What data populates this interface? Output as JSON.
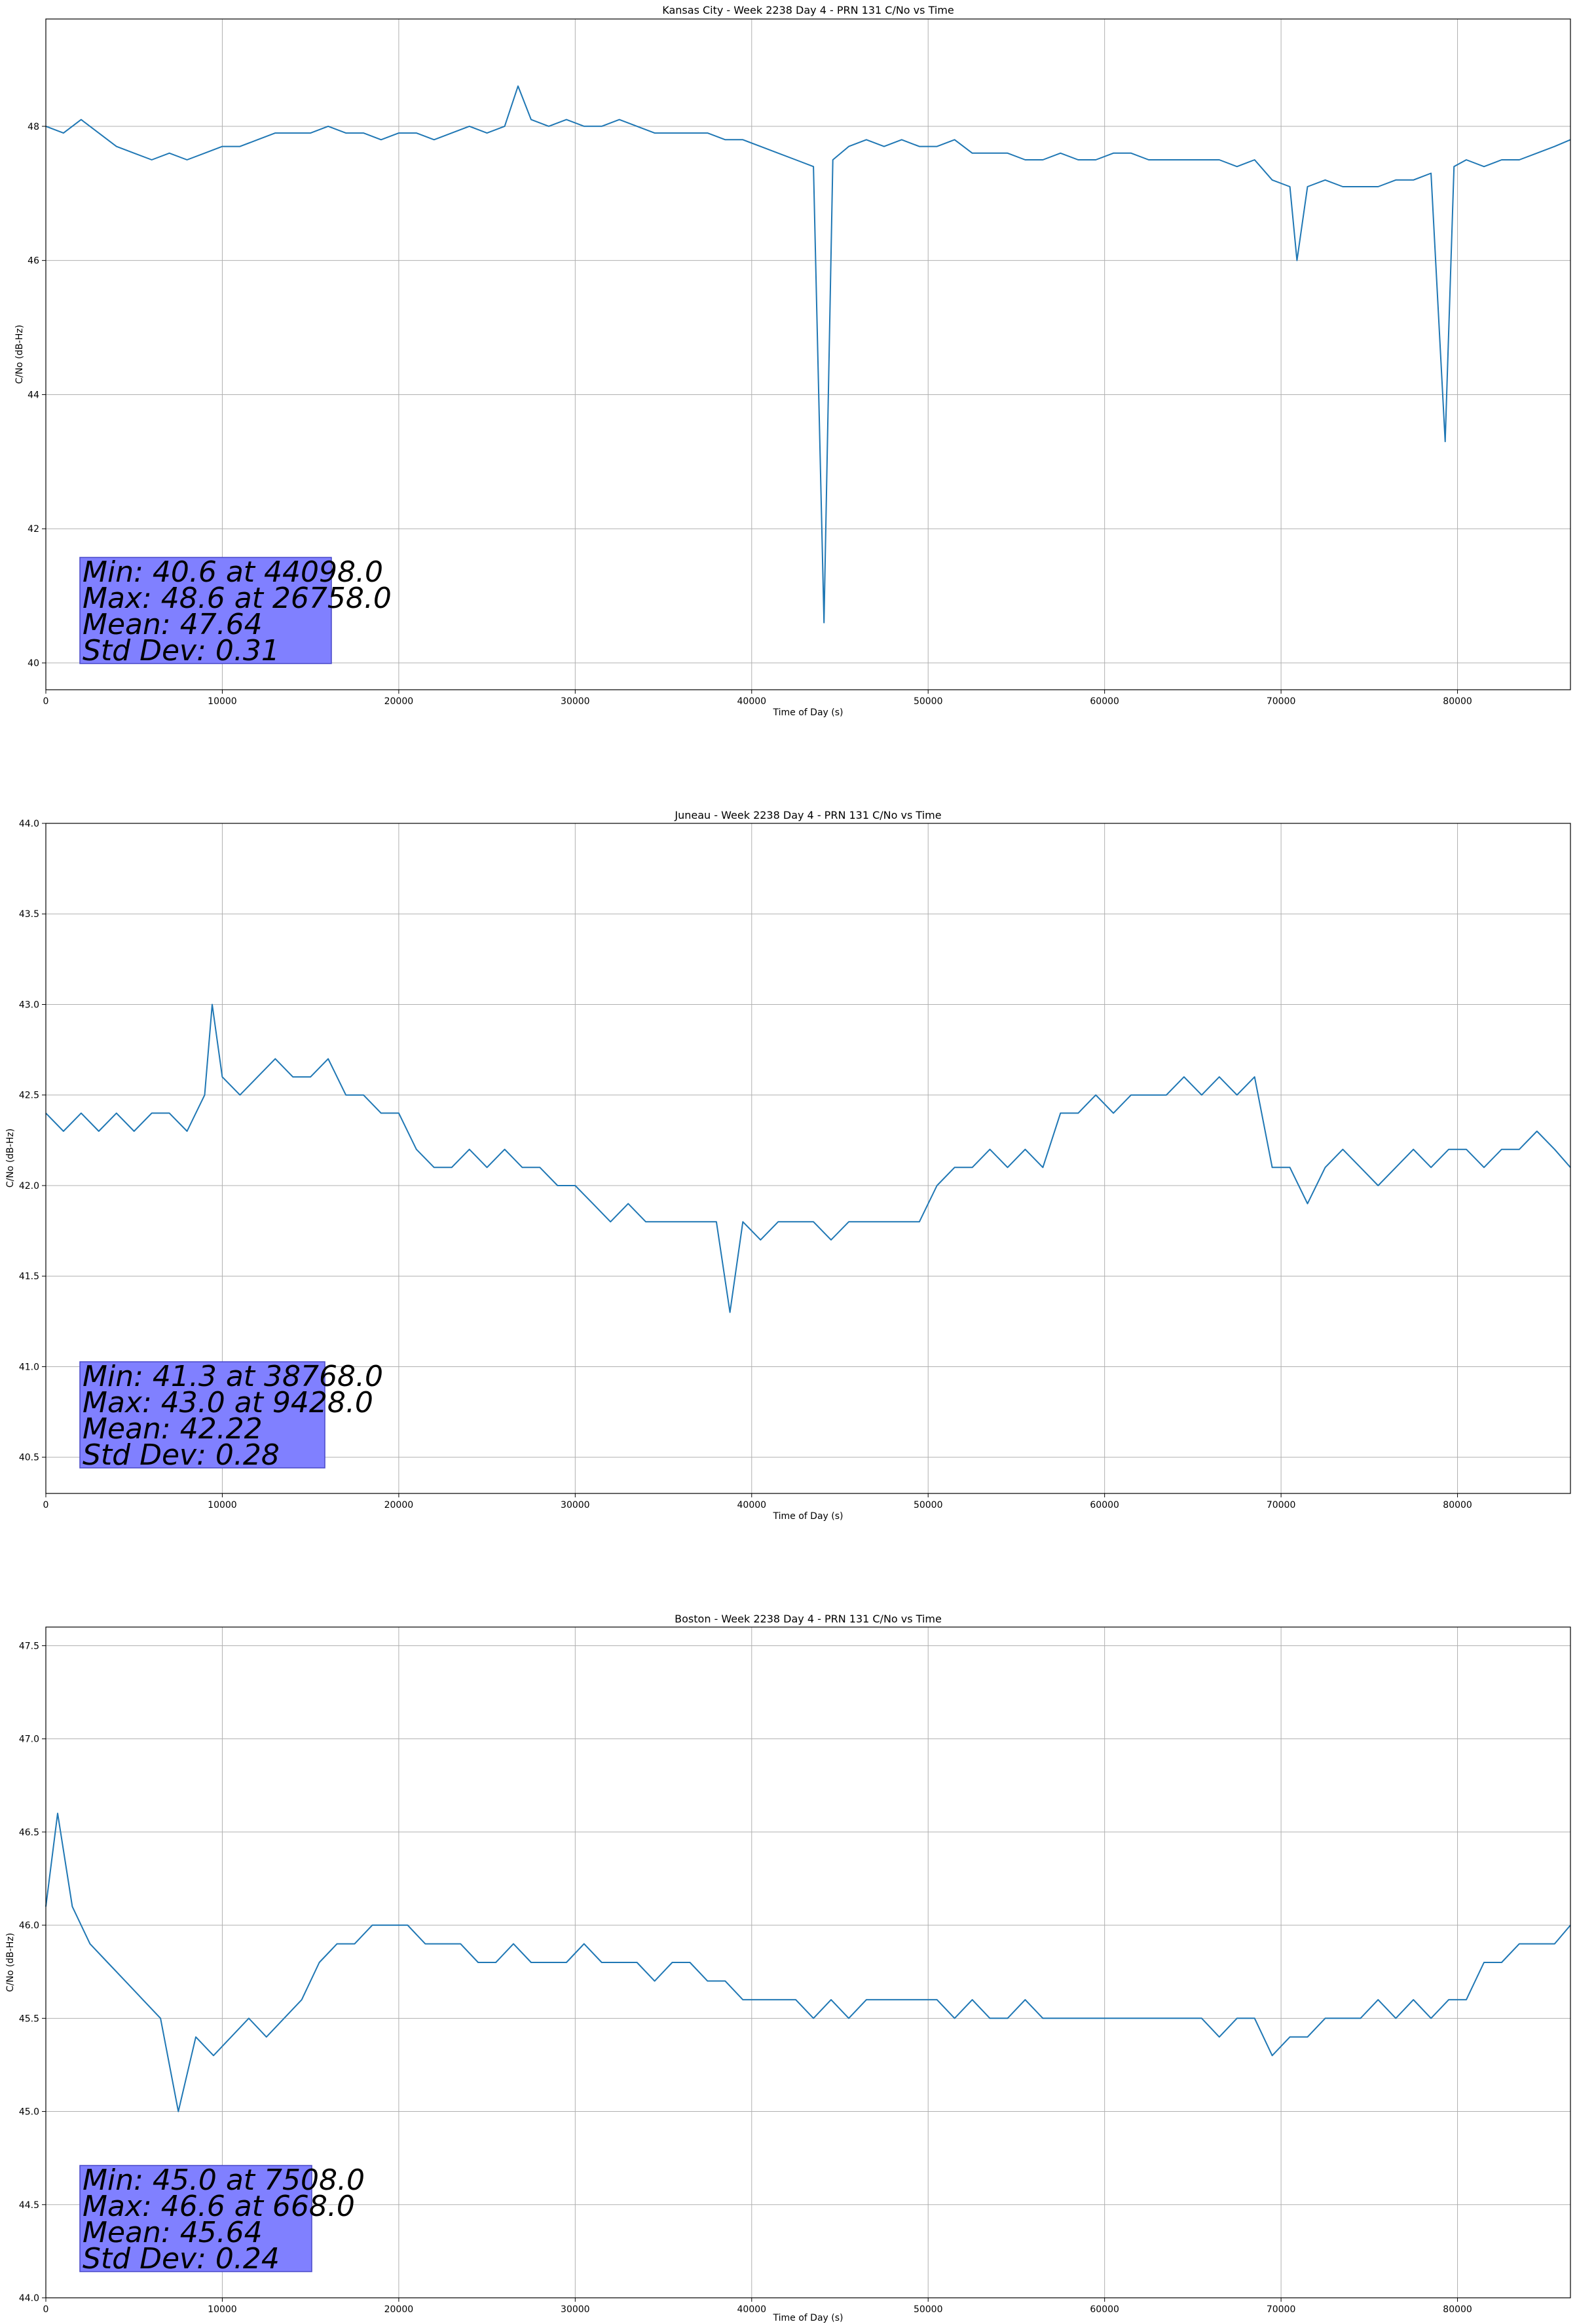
{
  "chart_data": [
    {
      "type": "line",
      "title": "Kansas City - Week 2238 Day 4 - PRN 131 C/No vs Time",
      "xlabel": "Time of Day (s)",
      "ylabel": "C/No (dB-Hz)",
      "xlim": [
        0,
        86400
      ],
      "ylim": [
        39.6,
        49.6
      ],
      "xticks": [
        0,
        10000,
        20000,
        30000,
        40000,
        50000,
        60000,
        70000,
        80000
      ],
      "yticks": [
        40,
        42,
        44,
        46,
        48
      ],
      "ytick_labels": [
        "40",
        "42",
        "44",
        "46",
        "48"
      ],
      "grid": true,
      "series_color": "#1f77b4",
      "series": [
        {
          "x": [
            0,
            1000,
            2000,
            3000,
            4000,
            5000,
            6000,
            7000,
            8000,
            9000,
            10000,
            11000,
            12000,
            13000,
            14000,
            15000,
            16000,
            17000,
            18000,
            19000,
            20000,
            21000,
            22000,
            23000,
            24000,
            25000,
            26000,
            26758,
            27500,
            28500,
            29500,
            30500,
            31500,
            32500,
            33500,
            34500,
            35500,
            36500,
            37500,
            38500,
            39500,
            40500,
            41500,
            42500,
            43500,
            44098,
            44600,
            45500,
            46500,
            47500,
            48500,
            49500,
            50500,
            51500,
            52500,
            53500,
            54500,
            55500,
            56500,
            57500,
            58500,
            59500,
            60500,
            61500,
            62500,
            63500,
            64500,
            65500,
            66500,
            67500,
            68500,
            69500,
            70500,
            70900,
            71500,
            72500,
            73500,
            74500,
            75500,
            76500,
            77500,
            78500,
            79300,
            79800,
            80500,
            81500,
            82500,
            83500,
            84500,
            85500,
            86400
          ],
          "y": [
            48.0,
            47.9,
            48.1,
            47.9,
            47.7,
            47.6,
            47.5,
            47.6,
            47.5,
            47.6,
            47.7,
            47.7,
            47.8,
            47.9,
            47.9,
            47.9,
            48.0,
            47.9,
            47.9,
            47.8,
            47.9,
            47.9,
            47.8,
            47.9,
            48.0,
            47.9,
            48.0,
            48.6,
            48.1,
            48.0,
            48.1,
            48.0,
            48.0,
            48.1,
            48.0,
            47.9,
            47.9,
            47.9,
            47.9,
            47.8,
            47.8,
            47.7,
            47.6,
            47.5,
            47.4,
            40.6,
            47.5,
            47.7,
            47.8,
            47.7,
            47.8,
            47.7,
            47.7,
            47.8,
            47.6,
            47.6,
            47.6,
            47.5,
            47.5,
            47.6,
            47.5,
            47.5,
            47.6,
            47.6,
            47.5,
            47.5,
            47.5,
            47.5,
            47.5,
            47.4,
            47.5,
            47.2,
            47.1,
            46.0,
            47.1,
            47.2,
            47.1,
            47.1,
            47.1,
            47.2,
            47.2,
            47.3,
            43.3,
            47.4,
            47.5,
            47.4,
            47.5,
            47.5,
            47.6,
            47.7,
            47.8
          ]
        }
      ],
      "annotation": {
        "lines": [
          "Min: 40.6 at 44098.0",
          "Max: 48.6 at 26758.0",
          "Mean: 47.64",
          "Std Dev: 0.31"
        ],
        "box_color": "#8080ff",
        "position": "lower-left"
      }
    },
    {
      "type": "line",
      "title": "Juneau - Week 2238 Day 4 - PRN 131 C/No vs Time",
      "xlabel": "Time of Day (s)",
      "ylabel": "C/No (dB-Hz)",
      "xlim": [
        0,
        86400
      ],
      "ylim": [
        40.3,
        44.0
      ],
      "xticks": [
        0,
        10000,
        20000,
        30000,
        40000,
        50000,
        60000,
        70000,
        80000
      ],
      "yticks": [
        40.5,
        41.0,
        41.5,
        42.0,
        42.5,
        43.0,
        43.5,
        44.0
      ],
      "ytick_labels": [
        "40.5",
        "41.0",
        "41.5",
        "42.0",
        "42.5",
        "43.0",
        "43.5",
        "44.0"
      ],
      "grid": true,
      "series_color": "#1f77b4",
      "series": [
        {
          "x": [
            0,
            1000,
            2000,
            3000,
            4000,
            5000,
            6000,
            7000,
            8000,
            9000,
            9428,
            10000,
            11000,
            12000,
            13000,
            14000,
            15000,
            16000,
            17000,
            18000,
            19000,
            20000,
            21000,
            22000,
            23000,
            24000,
            25000,
            26000,
            27000,
            28000,
            29000,
            30000,
            31000,
            32000,
            33000,
            34000,
            35000,
            36000,
            37000,
            38000,
            38768,
            39500,
            40500,
            41500,
            42500,
            43500,
            44500,
            45500,
            46500,
            47500,
            48500,
            49500,
            50500,
            51500,
            52500,
            53500,
            54500,
            55500,
            56500,
            57500,
            58500,
            59500,
            60500,
            61500,
            62500,
            63500,
            64500,
            65500,
            66500,
            67500,
            68500,
            69500,
            70500,
            71500,
            72500,
            73500,
            74500,
            75500,
            76500,
            77500,
            78500,
            79500,
            80500,
            81500,
            82500,
            83500,
            84500,
            85500,
            86400
          ],
          "y": [
            42.4,
            42.3,
            42.4,
            42.3,
            42.4,
            42.3,
            42.4,
            42.4,
            42.3,
            42.5,
            43.0,
            42.6,
            42.5,
            42.6,
            42.7,
            42.6,
            42.6,
            42.7,
            42.5,
            42.5,
            42.4,
            42.4,
            42.2,
            42.1,
            42.1,
            42.2,
            42.1,
            42.2,
            42.1,
            42.1,
            42.0,
            42.0,
            41.9,
            41.8,
            41.9,
            41.8,
            41.8,
            41.8,
            41.8,
            41.8,
            41.3,
            41.8,
            41.7,
            41.8,
            41.8,
            41.8,
            41.7,
            41.8,
            41.8,
            41.8,
            41.8,
            41.8,
            42.0,
            42.1,
            42.1,
            42.2,
            42.1,
            42.2,
            42.1,
            42.4,
            42.4,
            42.5,
            42.4,
            42.5,
            42.5,
            42.5,
            42.6,
            42.5,
            42.6,
            42.5,
            42.6,
            42.1,
            42.1,
            41.9,
            42.1,
            42.2,
            42.1,
            42.0,
            42.1,
            42.2,
            42.1,
            42.2,
            42.2,
            42.1,
            42.2,
            42.2,
            42.3,
            42.2,
            42.1
          ]
        }
      ],
      "annotation": {
        "lines": [
          "Min: 41.3 at 38768.0",
          "Max: 43.0 at 9428.0",
          "Mean: 42.22",
          "Std Dev: 0.28"
        ],
        "box_color": "#8080ff",
        "position": "lower-left"
      }
    },
    {
      "type": "line",
      "title": "Boston - Week 2238 Day 4 - PRN 131 C/No vs Time",
      "xlabel": "Time of Day (s)",
      "ylabel": "C/No (dB-Hz)",
      "xlim": [
        0,
        86400
      ],
      "ylim": [
        44.0,
        47.6
      ],
      "xticks": [
        0,
        10000,
        20000,
        30000,
        40000,
        50000,
        60000,
        70000,
        80000
      ],
      "yticks": [
        44.0,
        44.5,
        45.0,
        45.5,
        46.0,
        46.5,
        47.0,
        47.5
      ],
      "ytick_labels": [
        "44.0",
        "44.5",
        "45.0",
        "45.5",
        "46.0",
        "46.5",
        "47.0",
        "47.5"
      ],
      "grid": true,
      "series_color": "#1f77b4",
      "series": [
        {
          "x": [
            0,
            668,
            1500,
            2500,
            3500,
            4500,
            5500,
            6500,
            7508,
            8500,
            9500,
            10500,
            11500,
            12500,
            13500,
            14500,
            15500,
            16500,
            17500,
            18500,
            19500,
            20500,
            21500,
            22500,
            23500,
            24500,
            25500,
            26500,
            27500,
            28500,
            29500,
            30500,
            31500,
            32500,
            33500,
            34500,
            35500,
            36500,
            37500,
            38500,
            39500,
            40500,
            41500,
            42500,
            43500,
            44500,
            45500,
            46500,
            47500,
            48500,
            49500,
            50500,
            51500,
            52500,
            53500,
            54500,
            55500,
            56500,
            57500,
            58500,
            59500,
            60500,
            61500,
            62500,
            63500,
            64500,
            65500,
            66500,
            67500,
            68500,
            69500,
            70500,
            71500,
            72500,
            73500,
            74500,
            75500,
            76500,
            77500,
            78500,
            79500,
            80500,
            81500,
            82500,
            83500,
            84500,
            85500,
            86400
          ],
          "y": [
            46.1,
            46.6,
            46.1,
            45.9,
            45.8,
            45.7,
            45.6,
            45.5,
            45.0,
            45.4,
            45.3,
            45.4,
            45.5,
            45.4,
            45.5,
            45.6,
            45.8,
            45.9,
            45.9,
            46.0,
            46.0,
            46.0,
            45.9,
            45.9,
            45.9,
            45.8,
            45.8,
            45.9,
            45.8,
            45.8,
            45.8,
            45.9,
            45.8,
            45.8,
            45.8,
            45.7,
            45.8,
            45.8,
            45.7,
            45.7,
            45.6,
            45.6,
            45.6,
            45.6,
            45.5,
            45.6,
            45.5,
            45.6,
            45.6,
            45.6,
            45.6,
            45.6,
            45.5,
            45.6,
            45.5,
            45.5,
            45.6,
            45.5,
            45.5,
            45.5,
            45.5,
            45.5,
            45.5,
            45.5,
            45.5,
            45.5,
            45.5,
            45.4,
            45.5,
            45.5,
            45.3,
            45.4,
            45.4,
            45.5,
            45.5,
            45.5,
            45.6,
            45.5,
            45.6,
            45.5,
            45.6,
            45.6,
            45.8,
            45.8,
            45.9,
            45.9,
            45.9,
            46.0
          ]
        }
      ],
      "annotation": {
        "lines": [
          "Min: 45.0 at 7508.0",
          "Max: 46.6 at 668.0",
          "Mean: 45.64",
          "Std Dev: 0.24"
        ],
        "box_color": "#8080ff",
        "position": "lower-left"
      }
    }
  ]
}
